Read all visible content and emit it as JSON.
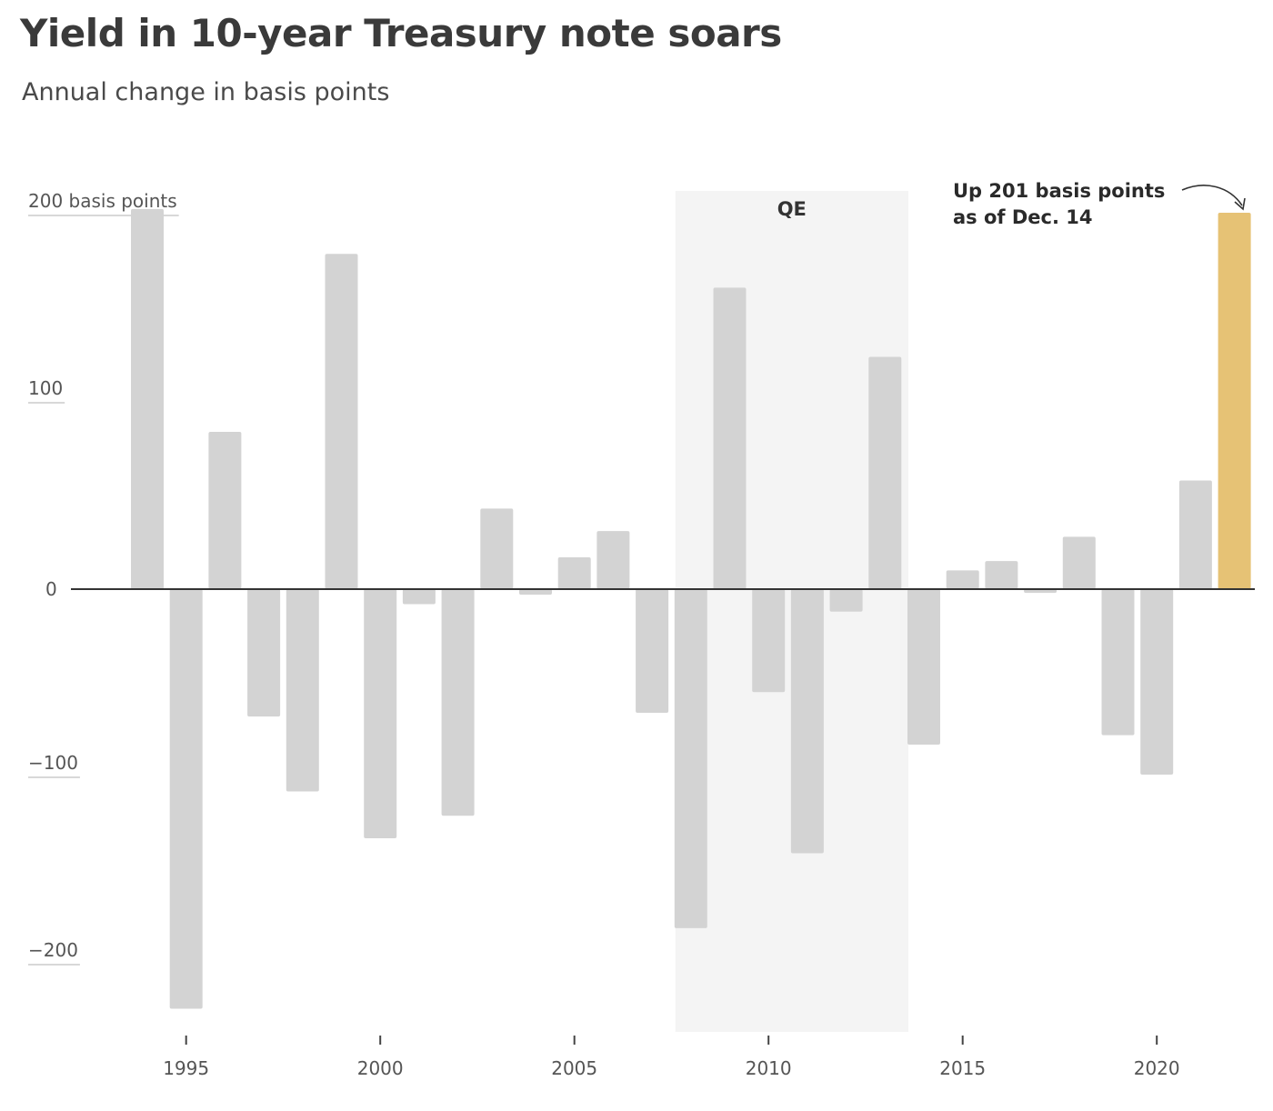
{
  "header": {
    "title": "Yield in 10-year Treasury note soars",
    "subtitle": "Annual change in basis points"
  },
  "chart_data": {
    "type": "bar",
    "title": "Yield in 10-year Treasury note soars",
    "subtitle": "Annual change in basis points",
    "xlabel": "",
    "ylabel": "basis points",
    "ylim": [
      -235,
      215
    ],
    "y_ticks": [
      {
        "value": 200,
        "label": "200 basis points"
      },
      {
        "value": 100,
        "label": "100"
      },
      {
        "value": 0,
        "label": "0"
      },
      {
        "value": -100,
        "label": "−100"
      },
      {
        "value": -200,
        "label": "−200"
      }
    ],
    "x_ticks": [
      1995,
      2000,
      2005,
      2010,
      2015,
      2020
    ],
    "categories": [
      1994,
      1995,
      1996,
      1997,
      1998,
      1999,
      2000,
      2001,
      2002,
      2003,
      2004,
      2005,
      2006,
      2007,
      2008,
      2009,
      2010,
      2011,
      2012,
      2013,
      2014,
      2015,
      2016,
      2017,
      2018,
      2019,
      2020,
      2021,
      2022
    ],
    "values": [
      203,
      -224,
      84,
      -68,
      -108,
      179,
      -133,
      -8,
      -121,
      43,
      -3,
      17,
      31,
      -66,
      -181,
      161,
      -55,
      -141,
      -12,
      124,
      -83,
      10,
      15,
      -2,
      28,
      -78,
      -99,
      58,
      201
    ],
    "highlight_index": 28,
    "colors": {
      "bar": "#d3d3d3",
      "highlight": "#e6c275",
      "shade": "#f4f4f4",
      "axis": "#333333",
      "grid": "#cccccc"
    },
    "shaded_region": {
      "label": "QE",
      "from": 2007.6,
      "to": 2013.6
    },
    "annotation": {
      "lines": [
        "Up 201 basis points",
        "as of Dec. 14"
      ],
      "target_index": 28
    }
  }
}
